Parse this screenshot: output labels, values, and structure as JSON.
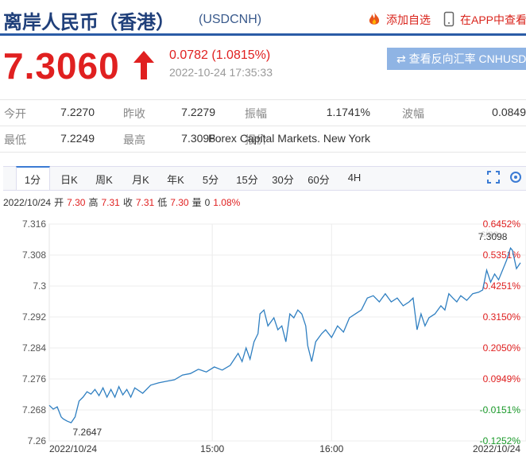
{
  "header": {
    "title": "离岸人民币（香港）",
    "symbol": "(USDCNH)",
    "actions": [
      "添加自选",
      "在APP中查看"
    ]
  },
  "quote": {
    "price": "7.3060",
    "change": "0.0782 (1.0815%)",
    "time": "2022-10-24 17:35:33",
    "reverse_button": "查看反向汇率 CNHUSD"
  },
  "stats": [
    [
      {
        "label": "今开",
        "value": "7.2270"
      },
      {
        "label": "昨收",
        "value": "7.2279"
      },
      {
        "label": "振幅",
        "value": "1.1741%"
      },
      {
        "label": "波幅",
        "value": "0.0849"
      }
    ],
    [
      {
        "label": "最低",
        "value": "7.2249"
      },
      {
        "label": "最高",
        "value": "7.3098"
      },
      {
        "label": "报价",
        "value": "Forex Capital Markets. New York"
      }
    ]
  ],
  "tabs": [
    "1分",
    "日K",
    "周K",
    "月K",
    "年K",
    "5分",
    "15分",
    "30分",
    "60分",
    "4H"
  ],
  "bar_info": {
    "date": "2022/10/24",
    "items": [
      {
        "label": "开",
        "value": "7.30"
      },
      {
        "label": "高",
        "value": "7.31"
      },
      {
        "label": "收",
        "value": "7.31"
      },
      {
        "label": "低",
        "value": "7.30"
      },
      {
        "label": "量",
        "value": "0"
      }
    ],
    "change": "1.08%"
  },
  "chart_data": {
    "type": "line",
    "color": "#2f7fc1",
    "grid": true,
    "x": [
      818,
      820,
      822,
      824,
      825,
      827,
      829,
      831,
      833,
      835,
      837,
      839,
      841,
      843,
      845,
      847,
      849,
      851,
      853,
      855,
      857,
      859,
      861,
      865,
      869,
      873,
      877,
      881,
      885,
      889,
      893,
      897,
      901,
      905,
      909,
      913,
      915,
      917,
      919,
      921,
      923,
      924,
      926,
      928,
      931,
      933,
      935,
      937,
      939,
      941,
      943,
      945,
      947,
      948,
      950,
      952,
      955,
      957,
      960,
      963,
      966,
      969,
      972,
      975,
      978,
      981,
      984,
      987,
      990,
      993,
      996,
      999,
      1001,
      1003,
      1005,
      1007,
      1009,
      1012,
      1015,
      1017,
      1019,
      1021,
      1023,
      1025,
      1028,
      1031,
      1034,
      1036,
      1038,
      1040,
      1042,
      1044,
      1046,
      1048,
      1050,
      1051,
      1053,
      1055
    ],
    "values": [
      7.2692,
      7.2682,
      7.2688,
      7.2662,
      7.2657,
      7.2651,
      7.2647,
      7.2662,
      7.2703,
      7.2713,
      7.2727,
      7.2721,
      7.2733,
      7.2717,
      7.2737,
      7.2713,
      7.2733,
      7.2713,
      7.274,
      7.2719,
      7.2733,
      7.2713,
      7.2737,
      7.2723,
      7.2744,
      7.275,
      7.2754,
      7.2758,
      7.277,
      7.2774,
      7.2785,
      7.2778,
      7.2791,
      7.2783,
      7.2795,
      7.2826,
      7.2805,
      7.284,
      7.2811,
      7.2856,
      7.2877,
      7.2928,
      7.2938,
      7.2897,
      7.2918,
      7.2887,
      7.2897,
      7.2856,
      7.2928,
      7.2918,
      7.2938,
      7.2928,
      7.2897,
      7.2846,
      7.2805,
      7.2856,
      7.2877,
      7.2887,
      7.2867,
      7.2897,
      7.2881,
      7.2918,
      7.2928,
      7.2938,
      7.2969,
      7.2975,
      7.2959,
      7.298,
      7.2959,
      7.2969,
      7.2949,
      7.2959,
      7.2969,
      7.2887,
      7.2928,
      7.2897,
      7.2918,
      7.2928,
      7.2949,
      7.2938,
      7.298,
      7.2969,
      7.2959,
      7.2975,
      7.2963,
      7.298,
      7.2984,
      7.299,
      7.3041,
      7.301,
      7.3031,
      7.3016,
      7.3041,
      7.3066,
      7.3098,
      7.3092,
      7.3045,
      7.306
    ],
    "xlim": [
      818,
      1055
    ],
    "xticks": [
      {
        "value": 818,
        "label": "2022/10/24"
      },
      {
        "value": 900,
        "label": "15:00"
      },
      {
        "value": 960,
        "label": "16:00"
      },
      {
        "value": 1055,
        "label": "2022/10/24"
      }
    ],
    "ylim": [
      7.26,
      7.316
    ],
    "yticks": [
      7.26,
      7.268,
      7.276,
      7.284,
      7.292,
      7.3,
      7.308,
      7.316
    ],
    "y2lim": [
      -0.1252,
      0.6452
    ],
    "y2ticks": [
      {
        "value": -0.1252,
        "label": "-0.1252%"
      },
      {
        "value": -0.0151,
        "label": "-0.0151%"
      },
      {
        "value": 0.0949,
        "label": "0.0949%"
      },
      {
        "value": 0.205,
        "label": "0.2050%"
      },
      {
        "value": 0.315,
        "label": "0.3150%"
      },
      {
        "value": 0.4251,
        "label": "0.4251%"
      },
      {
        "value": 0.5351,
        "label": "0.5351%"
      },
      {
        "value": 0.6452,
        "label": "0.6452%"
      }
    ],
    "annotations": [
      "7.3098",
      "7.2647"
    ]
  }
}
